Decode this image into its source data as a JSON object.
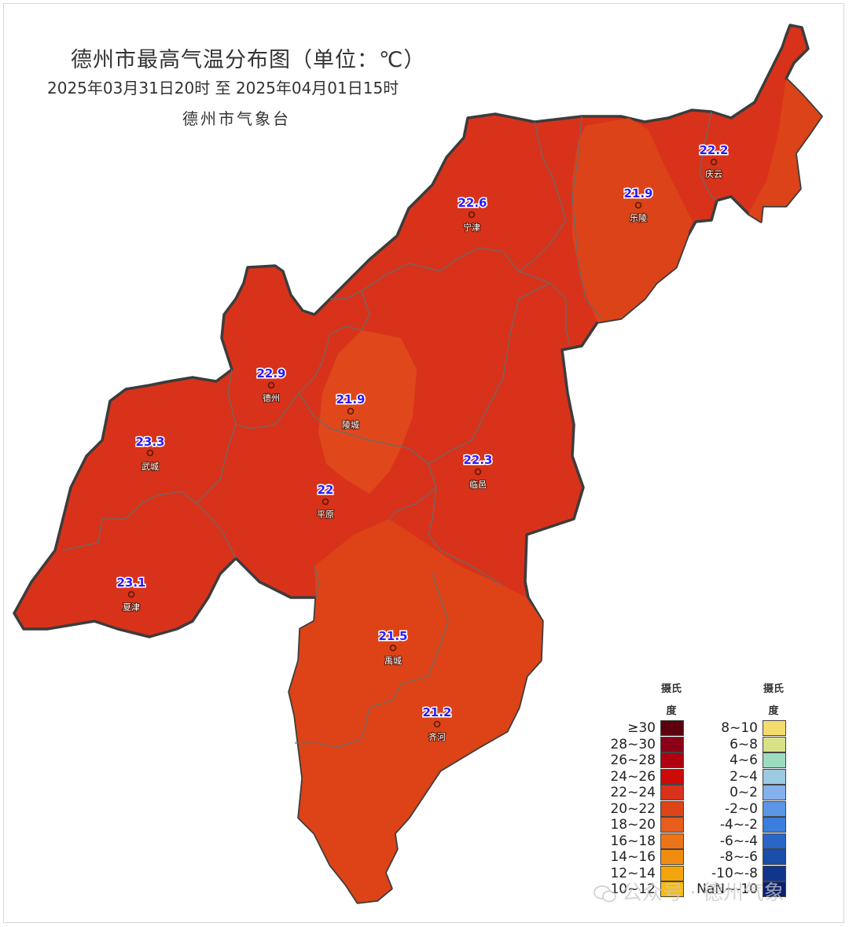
{
  "title": "德州市最高气温分布图（单位：℃）",
  "subtitle": "2025年03月31日20时  至  2025年04月01日15时",
  "agency": "德州市气象台",
  "stations": [
    {
      "name": "庆云",
      "value": "22.2"
    },
    {
      "name": "宁津",
      "value": "22.6"
    },
    {
      "name": "乐陵",
      "value": "21.9"
    },
    {
      "name": "德州",
      "value": "22.9"
    },
    {
      "name": "陵城",
      "value": "21.9"
    },
    {
      "name": "武城",
      "value": "23.3"
    },
    {
      "name": "临邑",
      "value": "22.3"
    },
    {
      "name": "平原",
      "value": "22"
    },
    {
      "name": "夏津",
      "value": "23.1"
    },
    {
      "name": "禹城",
      "value": "21.5"
    },
    {
      "name": "齐河",
      "value": "21.2"
    }
  ],
  "legend": {
    "unit_line1": "摄氏",
    "unit_line2": "度",
    "left": [
      {
        "label": "≥30",
        "color": "#5c0010"
      },
      {
        "label": "28~30",
        "color": "#8a0018"
      },
      {
        "label": "26~28",
        "color": "#b00010"
      },
      {
        "label": "24~26",
        "color": "#cc0a06"
      },
      {
        "label": "22~24",
        "color": "#d9321a"
      },
      {
        "label": "20~22",
        "color": "#dd4418"
      },
      {
        "label": "18~20",
        "color": "#e85c1c"
      },
      {
        "label": "16~18",
        "color": "#ec7418"
      },
      {
        "label": "14~16",
        "color": "#f08c10"
      },
      {
        "label": "12~14",
        "color": "#f4a40c"
      },
      {
        "label": "10~12",
        "color": "#f8bc10"
      }
    ],
    "right": [
      {
        "label": "8~10",
        "color": "#f4dc6c"
      },
      {
        "label": "6~8",
        "color": "#d8e088"
      },
      {
        "label": "4~6",
        "color": "#9edcc0"
      },
      {
        "label": "2~4",
        "color": "#9ccae0"
      },
      {
        "label": "0~2",
        "color": "#86b0ec"
      },
      {
        "label": "-2~0",
        "color": "#5a96e4"
      },
      {
        "label": "-4~-2",
        "color": "#3a7ede"
      },
      {
        "label": "-6~-4",
        "color": "#2a66c8"
      },
      {
        "label": "-8~-6",
        "color": "#1a4ea8"
      },
      {
        "label": "-10~-8",
        "color": "#10368c"
      },
      {
        "label": "NaN~-10",
        "color": "#0a2070"
      }
    ]
  },
  "watermark": "公众号 · 德州气象"
}
